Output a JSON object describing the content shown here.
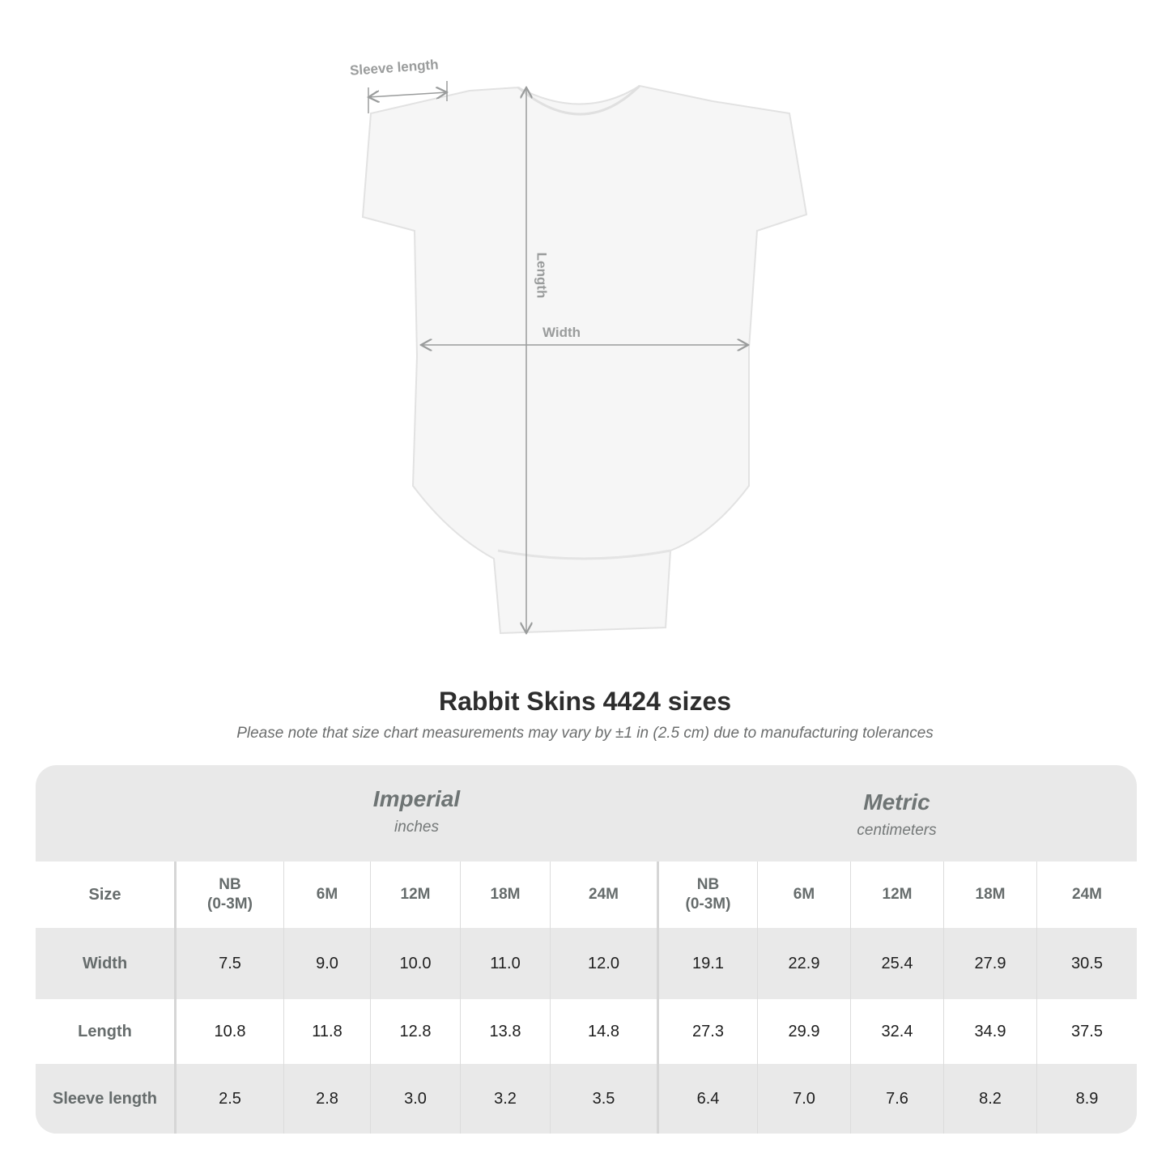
{
  "diagram": {
    "labels": {
      "sleeve": "Sleeve length",
      "length": "Length",
      "width": "Width"
    }
  },
  "title": "Rabbit Skins 4424 sizes",
  "note": "Please note that size chart measurements may vary by ±1 in (2.5 cm) due to manufacturing tolerances",
  "table": {
    "imperial": {
      "label": "Imperial",
      "unit": "inches"
    },
    "metric": {
      "label": "Metric",
      "unit": "centimeters"
    },
    "header": [
      "Size",
      "NB\n(0-3M)",
      "6M",
      "12M",
      "18M",
      "24M",
      "NB\n(0-3M)",
      "6M",
      "12M",
      "18M",
      "24M"
    ],
    "rows": [
      [
        "Width",
        "7.5",
        "9.0",
        "10.0",
        "11.0",
        "12.0",
        "19.1",
        "22.9",
        "25.4",
        "27.9",
        "30.5"
      ],
      [
        "Length",
        "10.8",
        "11.8",
        "12.8",
        "13.8",
        "14.8",
        "27.3",
        "29.9",
        "32.4",
        "34.9",
        "37.5"
      ],
      [
        "Sleeve length",
        "2.5",
        "2.8",
        "3.0",
        "3.2",
        "3.5",
        "6.4",
        "7.0",
        "7.6",
        "8.2",
        "8.9"
      ]
    ]
  },
  "colors": {
    "table_bg": "#e9e9e9",
    "label_text": "#666c6c",
    "measure_line": "#9a9c9c"
  }
}
